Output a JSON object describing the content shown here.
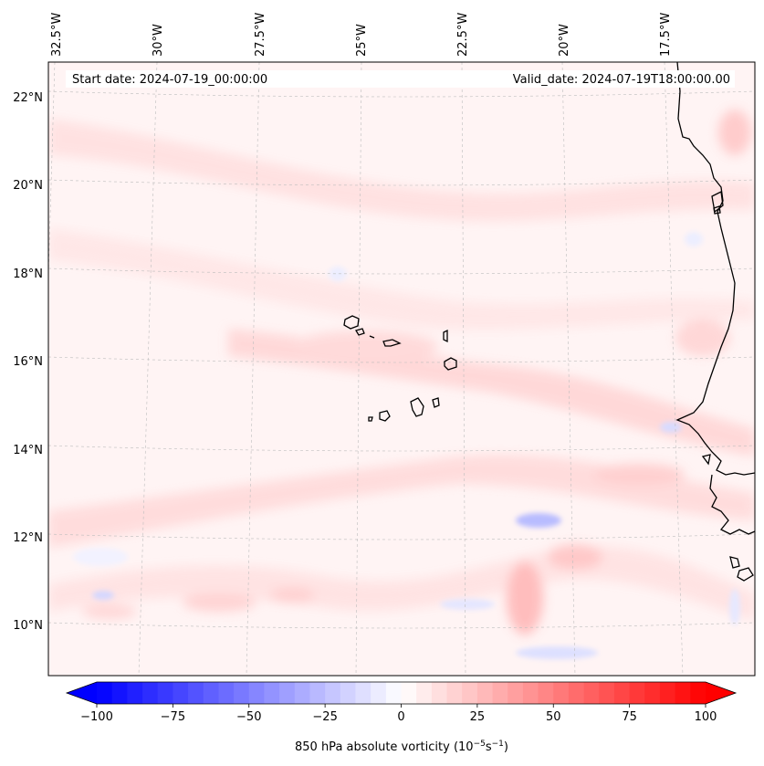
{
  "map": {
    "start_date": "Start date: 2024-07-19_00:00:00",
    "valid_date": "Valid_date: 2024-07-19T18:00:00.00",
    "lon_labels": [
      "32.5°W",
      "30°W",
      "27.5°W",
      "25°W",
      "22.5°W",
      "20°W",
      "17.5°W"
    ],
    "lat_labels": [
      "22°N",
      "20°N",
      "18°N",
      "16°N",
      "14°N",
      "12°N",
      "10°N"
    ],
    "coastline_color": "#000000",
    "gridline_color": "#bdbdbd"
  },
  "colorbar": {
    "ticks": [
      "−100",
      "−75",
      "−50",
      "−25",
      "0",
      "25",
      "50",
      "75",
      "100"
    ],
    "label_main": "850 hPa absolute vorticity (10",
    "label_exp1": "−5",
    "label_mid": "s",
    "label_exp2": "−1",
    "label_end": ")",
    "min_color": "#0000ff",
    "max_color": "#ff0000"
  }
}
